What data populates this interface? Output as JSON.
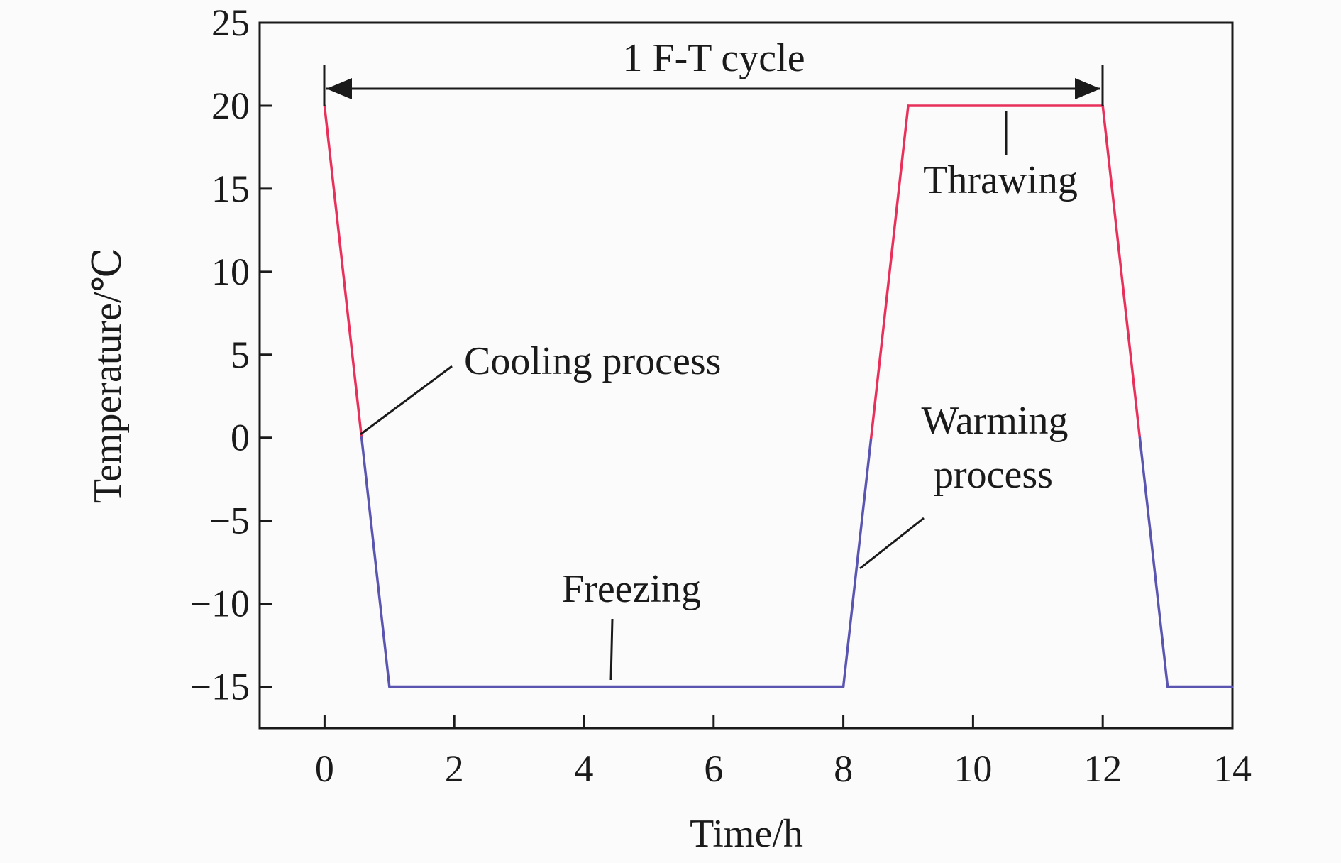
{
  "chart_data": {
    "type": "line",
    "xlabel": "Time/h",
    "ylabel": "Temperature/℃",
    "xlim": [
      -1,
      14
    ],
    "ylim": [
      -17.5,
      25
    ],
    "xticks": [
      0,
      2,
      4,
      6,
      8,
      10,
      12,
      14
    ],
    "yticks": [
      -15,
      -10,
      -5,
      0,
      5,
      10,
      15,
      20,
      25
    ],
    "xtick_labels": [
      "0",
      "2",
      "4",
      "6",
      "8",
      "10",
      "12",
      "14"
    ],
    "ytick_labels": [
      "−15",
      "−10",
      "−5",
      "0",
      "5",
      "10",
      "15",
      "20",
      "25"
    ],
    "grid": false,
    "colors": {
      "above_zero": "#e8305a",
      "below_zero": "#5a55b0",
      "axis": "#1a1a1a"
    },
    "series": [
      {
        "x": [
          0,
          1,
          8,
          9,
          12,
          13,
          14
        ],
        "y": [
          20,
          -15,
          -15,
          20,
          20,
          -15,
          -15
        ]
      }
    ],
    "annotations": {
      "cycle": {
        "text": "1 F-T cycle",
        "x_start": 0,
        "x_end": 12,
        "y": 21.2
      },
      "cooling": {
        "text": "Cooling process"
      },
      "freezing": {
        "text": "Freezing"
      },
      "warming_line1": {
        "text": "Warming"
      },
      "warming_line2": {
        "text": "process"
      },
      "thrawing": {
        "text": "Thrawing"
      }
    }
  }
}
